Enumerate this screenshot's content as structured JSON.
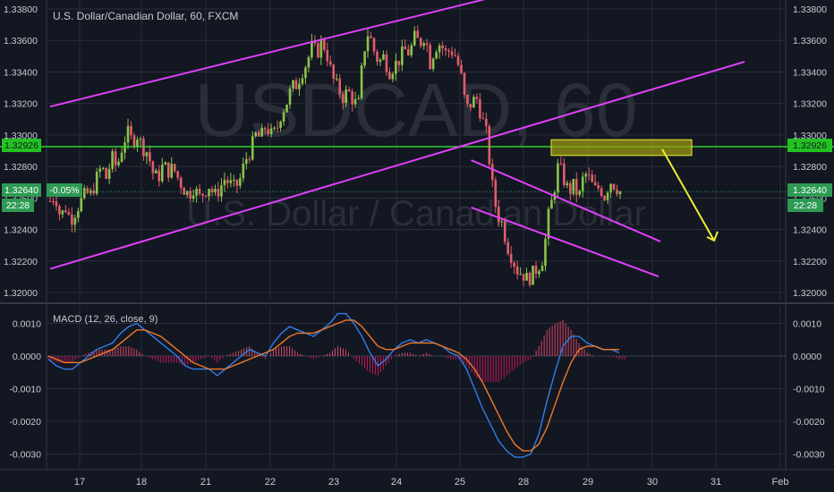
{
  "colors": {
    "background": "#131722",
    "grid": "#2a2e39",
    "candle_up": "#8bc34a",
    "candle_down": "#e35d6a",
    "channel": "#e040fb",
    "horizontal_level": "#33dd33",
    "zone_fill": "#9a9a12",
    "arrow": "#eeee33",
    "macd_line": "#2f7ee8",
    "signal_line": "#f07a2a",
    "hist_pos": "#d94767",
    "hist_neg": "#c2185b",
    "axis_text": "#c8cbd3",
    "watermark": "#2a2e39"
  },
  "header": {
    "title": "U.S. Dollar/Canadian Dollar, 60, FXCM"
  },
  "watermark": {
    "symbol": "USDCAD, 60",
    "name": "U.S. Dollar / Canadian Dollar"
  },
  "badges": {
    "level_left": "1.32926",
    "level_right": "1.32926",
    "price_left": "1.32640",
    "change": "-0.05%",
    "countdown_left": "22:28",
    "price_right": "1.32640",
    "countdown_right": "22:28"
  },
  "macd": {
    "label": "MACD (12, 26, close, 9)"
  },
  "chart_data": [
    {
      "type": "candlestick",
      "title": "U.S. Dollar/Canadian Dollar, 60, FXCM",
      "ylim": [
        1.3196,
        1.3382
      ],
      "y_ticks": [
        "1.32000",
        "1.32200",
        "1.32400",
        "1.32600",
        "1.32800",
        "1.33000",
        "1.33200",
        "1.33400",
        "1.33600",
        "1.33800"
      ],
      "x_ticks": [
        "17",
        "18",
        "21",
        "22",
        "23",
        "24",
        "25",
        "28",
        "29",
        "30",
        "31",
        "Feb"
      ],
      "last_price": 1.3264,
      "change_pct": "-0.05%",
      "close_path": [
        [
          0,
          1.3258
        ],
        [
          1,
          1.3262
        ],
        [
          2,
          1.3248
        ],
        [
          3,
          1.3254
        ],
        [
          4,
          1.3246
        ],
        [
          5,
          1.3252
        ],
        [
          6,
          1.3258
        ],
        [
          7,
          1.3263
        ],
        [
          8,
          1.3262
        ],
        [
          9,
          1.3272
        ],
        [
          10,
          1.328
        ],
        [
          11,
          1.3272
        ],
        [
          12,
          1.3286
        ],
        [
          13,
          1.3279
        ],
        [
          14,
          1.3292
        ],
        [
          15,
          1.3302
        ],
        [
          16,
          1.3296
        ],
        [
          17,
          1.33
        ],
        [
          18,
          1.3292
        ],
        [
          19,
          1.3289
        ],
        [
          20,
          1.3276
        ],
        [
          21,
          1.3272
        ],
        [
          22,
          1.3281
        ],
        [
          23,
          1.3277
        ],
        [
          24,
          1.3279
        ],
        [
          25,
          1.3272
        ],
        [
          26,
          1.3266
        ],
        [
          27,
          1.3262
        ],
        [
          28,
          1.3267
        ],
        [
          29,
          1.326
        ],
        [
          30,
          1.3264
        ],
        [
          31,
          1.3268
        ],
        [
          32,
          1.3261
        ],
        [
          33,
          1.3266
        ],
        [
          34,
          1.3272
        ],
        [
          35,
          1.3269
        ],
        [
          36,
          1.3266
        ],
        [
          37,
          1.3272
        ],
        [
          38,
          1.3284
        ],
        [
          39,
          1.329
        ],
        [
          40,
          1.33
        ],
        [
          41,
          1.3298
        ],
        [
          42,
          1.3306
        ],
        [
          43,
          1.33
        ],
        [
          44,
          1.3302
        ],
        [
          45,
          1.3314
        ],
        [
          46,
          1.332
        ],
        [
          47,
          1.333
        ],
        [
          48,
          1.3332
        ],
        [
          49,
          1.334
        ],
        [
          50,
          1.3346
        ],
        [
          51,
          1.3356
        ],
        [
          52,
          1.3352
        ],
        [
          53,
          1.336
        ],
        [
          54,
          1.335
        ],
        [
          55,
          1.3336
        ],
        [
          56,
          1.333
        ],
        [
          57,
          1.3324
        ],
        [
          58,
          1.3328
        ],
        [
          59,
          1.3322
        ],
        [
          60,
          1.3318
        ],
        [
          61,
          1.3352
        ],
        [
          62,
          1.3366
        ],
        [
          63,
          1.3354
        ],
        [
          64,
          1.3346
        ],
        [
          65,
          1.335
        ],
        [
          66,
          1.334
        ],
        [
          67,
          1.3344
        ],
        [
          68,
          1.3348
        ],
        [
          69,
          1.3354
        ],
        [
          70,
          1.3352
        ],
        [
          71,
          1.3362
        ],
        [
          72,
          1.3358
        ],
        [
          73,
          1.3364
        ],
        [
          74,
          1.3346
        ],
        [
          75,
          1.3356
        ],
        [
          76,
          1.3358
        ],
        [
          77,
          1.3352
        ],
        [
          78,
          1.3354
        ],
        [
          79,
          1.335
        ],
        [
          80,
          1.3338
        ],
        [
          81,
          1.3316
        ],
        [
          82,
          1.332
        ],
        [
          83,
          1.3324
        ],
        [
          84,
          1.3312
        ],
        [
          85,
          1.33
        ],
        [
          86,
          1.327
        ],
        [
          87,
          1.325
        ],
        [
          88,
          1.3244
        ],
        [
          89,
          1.323
        ],
        [
          90,
          1.3222
        ],
        [
          91,
          1.3214
        ],
        [
          92,
          1.3212
        ],
        [
          93,
          1.3208
        ],
        [
          94,
          1.3212
        ],
        [
          95,
          1.3216
        ],
        [
          96,
          1.3222
        ],
        [
          97,
          1.3248
        ],
        [
          98,
          1.3262
        ],
        [
          99,
          1.3282
        ],
        [
          100,
          1.3272
        ],
        [
          101,
          1.3264
        ],
        [
          102,
          1.3268
        ],
        [
          103,
          1.326
        ],
        [
          104,
          1.3276
        ],
        [
          105,
          1.3272
        ],
        [
          106,
          1.3265
        ],
        [
          107,
          1.3267
        ],
        [
          108,
          1.3261
        ],
        [
          109,
          1.3271
        ],
        [
          110,
          1.3268
        ],
        [
          111,
          1.3264
        ]
      ],
      "horizontal_level": 1.32926,
      "trend_channel": {
        "upper": [
          [
            0,
            1.3318
          ],
          [
            77,
            1.338
          ]
        ],
        "lower": [
          [
            0,
            1.3215
          ],
          [
            108,
            1.332
          ]
        ]
      },
      "down_channel": {
        "upper": [
          [
            82,
            1.3284
          ],
          [
            102,
            1.3256
          ]
        ],
        "lower": [
          [
            82,
            1.3254
          ],
          [
            102,
            1.323
          ]
        ]
      },
      "resistance_zone": {
        "from": 1.3287,
        "to": 1.3297
      },
      "projection_arrow": {
        "from": 1.3291,
        "to": 1.3233
      }
    },
    {
      "type": "line",
      "title": "MACD (12, 26, close, 9)",
      "ylim": [
        -0.0034,
        0.0014
      ],
      "y_ticks": [
        "0.0010",
        "0.0000",
        "-0.0010",
        "-0.0020",
        "-0.0030"
      ],
      "series": [
        {
          "name": "MACD",
          "values": [
            -0.0001,
            -0.0003,
            -0.0004,
            -0.0004,
            -0.0002,
            0.0,
            0.0002,
            0.0003,
            0.0004,
            0.0007,
            0.0009,
            0.001,
            0.0008,
            0.0006,
            0.0004,
            0.0002,
            0.0,
            -0.0003,
            -0.0004,
            -0.0004,
            -0.0004,
            -0.0006,
            -0.0004,
            -0.0002,
            0.0,
            0.0002,
            0.0001,
            0.0,
            0.0004,
            0.0007,
            0.0009,
            0.0008,
            0.0007,
            0.0006,
            0.0008,
            0.001,
            0.0013,
            0.0013,
            0.001,
            0.0006,
            0.0001,
            -0.0003,
            -0.0001,
            0.0002,
            0.0004,
            0.0005,
            0.0004,
            0.0005,
            0.0004,
            0.0003,
            0.0001,
            0.0,
            -0.0004,
            -0.001,
            -0.0016,
            -0.0021,
            -0.0026,
            -0.0029,
            -0.0031,
            -0.0031,
            -0.003,
            -0.0024,
            -0.0014,
            -0.0005,
            0.0003,
            0.0006,
            0.0006,
            0.0004,
            0.0003,
            0.0002,
            0.0002,
            0.0001
          ]
        },
        {
          "name": "Signal",
          "values": [
            0.0,
            -0.0001,
            -0.0002,
            -0.0002,
            -0.0002,
            -0.0001,
            0.0,
            0.0001,
            0.0002,
            0.0004,
            0.0006,
            0.0008,
            0.0008,
            0.0007,
            0.0006,
            0.0004,
            0.0002,
            0.0,
            -0.0002,
            -0.0003,
            -0.0004,
            -0.0004,
            -0.0004,
            -0.0003,
            -0.0002,
            -0.0001,
            0.0,
            0.0001,
            0.0002,
            0.0004,
            0.0006,
            0.0007,
            0.0007,
            0.0007,
            0.0008,
            0.0009,
            0.001,
            0.0011,
            0.0011,
            0.0009,
            0.0006,
            0.0003,
            0.0002,
            0.0002,
            0.0003,
            0.0004,
            0.0004,
            0.0004,
            0.0004,
            0.0003,
            0.0002,
            0.0001,
            -0.0001,
            -0.0004,
            -0.0008,
            -0.0013,
            -0.0018,
            -0.0023,
            -0.0027,
            -0.0029,
            -0.0029,
            -0.0027,
            -0.0022,
            -0.0015,
            -0.0008,
            -0.0002,
            0.0002,
            0.0003,
            0.0003,
            0.0002,
            0.0002,
            0.0002
          ]
        }
      ],
      "histogram": [
        -0.0001,
        -0.0002,
        -0.0002,
        -0.0002,
        0.0,
        0.0001,
        0.0002,
        0.0002,
        0.0002,
        0.0003,
        0.0003,
        0.0002,
        0.0,
        -0.0001,
        -0.0002,
        -0.0002,
        -0.0002,
        -0.0003,
        -0.0002,
        -0.0001,
        0.0,
        -0.0002,
        0.0,
        0.0001,
        0.0002,
        0.0003,
        0.0001,
        -0.0001,
        0.0002,
        0.0003,
        0.0003,
        0.0001,
        0.0,
        -0.0001,
        0.0,
        0.0001,
        0.0003,
        0.0002,
        -0.0001,
        -0.0003,
        -0.0005,
        -0.0006,
        -0.0003,
        0.0,
        0.0001,
        0.0001,
        0.0,
        0.0001,
        0.0,
        0.0,
        -0.0001,
        -0.0001,
        -0.0003,
        -0.0006,
        -0.0008,
        -0.0008,
        -0.0008,
        -0.0006,
        -0.0004,
        -0.0002,
        -0.0001,
        0.0003,
        0.0008,
        0.001,
        0.0011,
        0.0008,
        0.0004,
        0.0001,
        0.0,
        0.0,
        0.0,
        -0.0001
      ]
    }
  ]
}
